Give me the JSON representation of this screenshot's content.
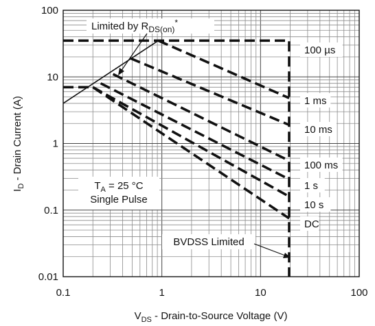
{
  "chart_data": {
    "type": "line",
    "title": "",
    "xlabel": "V_DS - Drain-to-Source Voltage (V)",
    "ylabel": "I_D - Drain Current (A)",
    "x_scale": "log",
    "y_scale": "log",
    "xlim": [
      0.1,
      100
    ],
    "ylim": [
      0.01,
      100
    ],
    "grid": true,
    "x_ticks": [
      {
        "value": 0.1,
        "label": "0.1"
      },
      {
        "value": 1,
        "label": "1"
      },
      {
        "value": 10,
        "label": "10"
      },
      {
        "value": 100,
        "label": "100"
      }
    ],
    "y_ticks": [
      {
        "value": 0.01,
        "label": "0.01"
      },
      {
        "value": 0.1,
        "label": "0.1"
      },
      {
        "value": 1,
        "label": "1"
      },
      {
        "value": 10,
        "label": "10"
      },
      {
        "value": 100,
        "label": "100"
      }
    ],
    "series": [
      {
        "name": "100 µs",
        "style": "dashed",
        "points": [
          [
            0.1,
            35
          ],
          [
            19.5,
            35
          ],
          [
            19.5,
            0.003
          ]
        ]
      },
      {
        "name": "1 ms",
        "style": "dashed",
        "points": [
          [
            0.92,
            35
          ],
          [
            19.5,
            4.8
          ]
        ]
      },
      {
        "name": "10 ms",
        "style": "dashed",
        "points": [
          [
            0.48,
            19
          ],
          [
            19.5,
            1.9
          ]
        ]
      },
      {
        "name": "100 ms",
        "style": "dashed",
        "points": [
          [
            0.32,
            11
          ],
          [
            19.5,
            0.55
          ]
        ]
      },
      {
        "name": "1 s",
        "style": "dashed",
        "points": [
          [
            0.24,
            8
          ],
          [
            19.5,
            0.29
          ]
        ]
      },
      {
        "name": "10 s",
        "style": "dashed",
        "points": [
          [
            0.2,
            7
          ],
          [
            19.5,
            0.16
          ]
        ]
      },
      {
        "name": "DC",
        "style": "dashed",
        "points": [
          [
            0.1,
            7
          ],
          [
            0.2,
            7
          ],
          [
            19.5,
            0.075
          ]
        ]
      },
      {
        "name": "Limited by R_DS(on)*",
        "style": "solid",
        "points": [
          [
            0.1,
            4
          ],
          [
            0.92,
            35
          ]
        ]
      }
    ],
    "annotations": {
      "rds_limit": {
        "pre": "Limited by R",
        "sub": "DS(on)",
        "sup": "*"
      },
      "condition_line1": {
        "pre": "T",
        "sub": "A",
        "post": " = 25 °C"
      },
      "condition_line2": "Single Pulse",
      "bvdss": "BVDSS Limited"
    },
    "axis_titles": {
      "x": {
        "pre": "V",
        "sub": "DS",
        "post": " - Drain-to-Source Voltage (V)"
      },
      "y": {
        "pre": "I",
        "sub": "D",
        "post": " - Drain Current (A)"
      }
    }
  }
}
